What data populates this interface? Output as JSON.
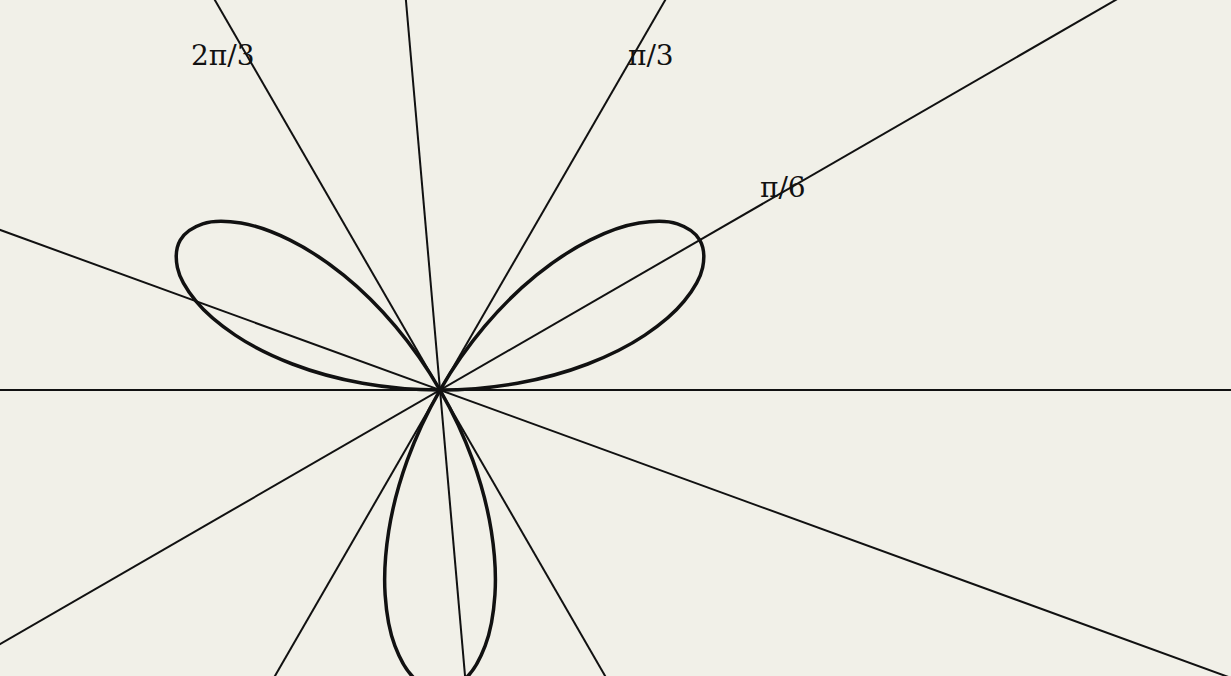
{
  "chart_data": {
    "type": "polar",
    "theta": [
      0,
      5,
      10,
      15,
      20,
      25,
      30,
      35,
      40,
      45,
      50,
      55,
      60,
      65,
      70,
      75,
      80,
      85,
      90,
      95,
      100,
      105,
      110,
      115,
      120,
      125,
      130,
      135,
      140,
      145,
      150,
      155,
      160,
      165,
      170,
      175,
      180
    ],
    "r": [
      0,
      0.259,
      0.5,
      0.707,
      0.866,
      0.966,
      1,
      0.966,
      0.866,
      0.707,
      0.5,
      0.259,
      0,
      -0.259,
      -0.5,
      -0.707,
      -0.866,
      -0.966,
      -1,
      -0.966,
      -0.866,
      -0.707,
      -0.5,
      -0.259,
      0,
      0.259,
      0.5,
      0.707,
      0.866,
      0.966,
      1,
      0.966,
      0.866,
      0.707,
      0.5,
      0.259,
      0
    ],
    "rays": [
      {
        "angle": 0
      },
      {
        "angle": 30,
        "label": "π/6"
      },
      {
        "angle": 60,
        "label": "π/3"
      },
      {
        "angle": 95
      },
      {
        "angle": 120,
        "label": "2π/3"
      },
      {
        "angle": 160
      }
    ],
    "color": "#111111",
    "grid": false,
    "tick_labels": false
  }
}
